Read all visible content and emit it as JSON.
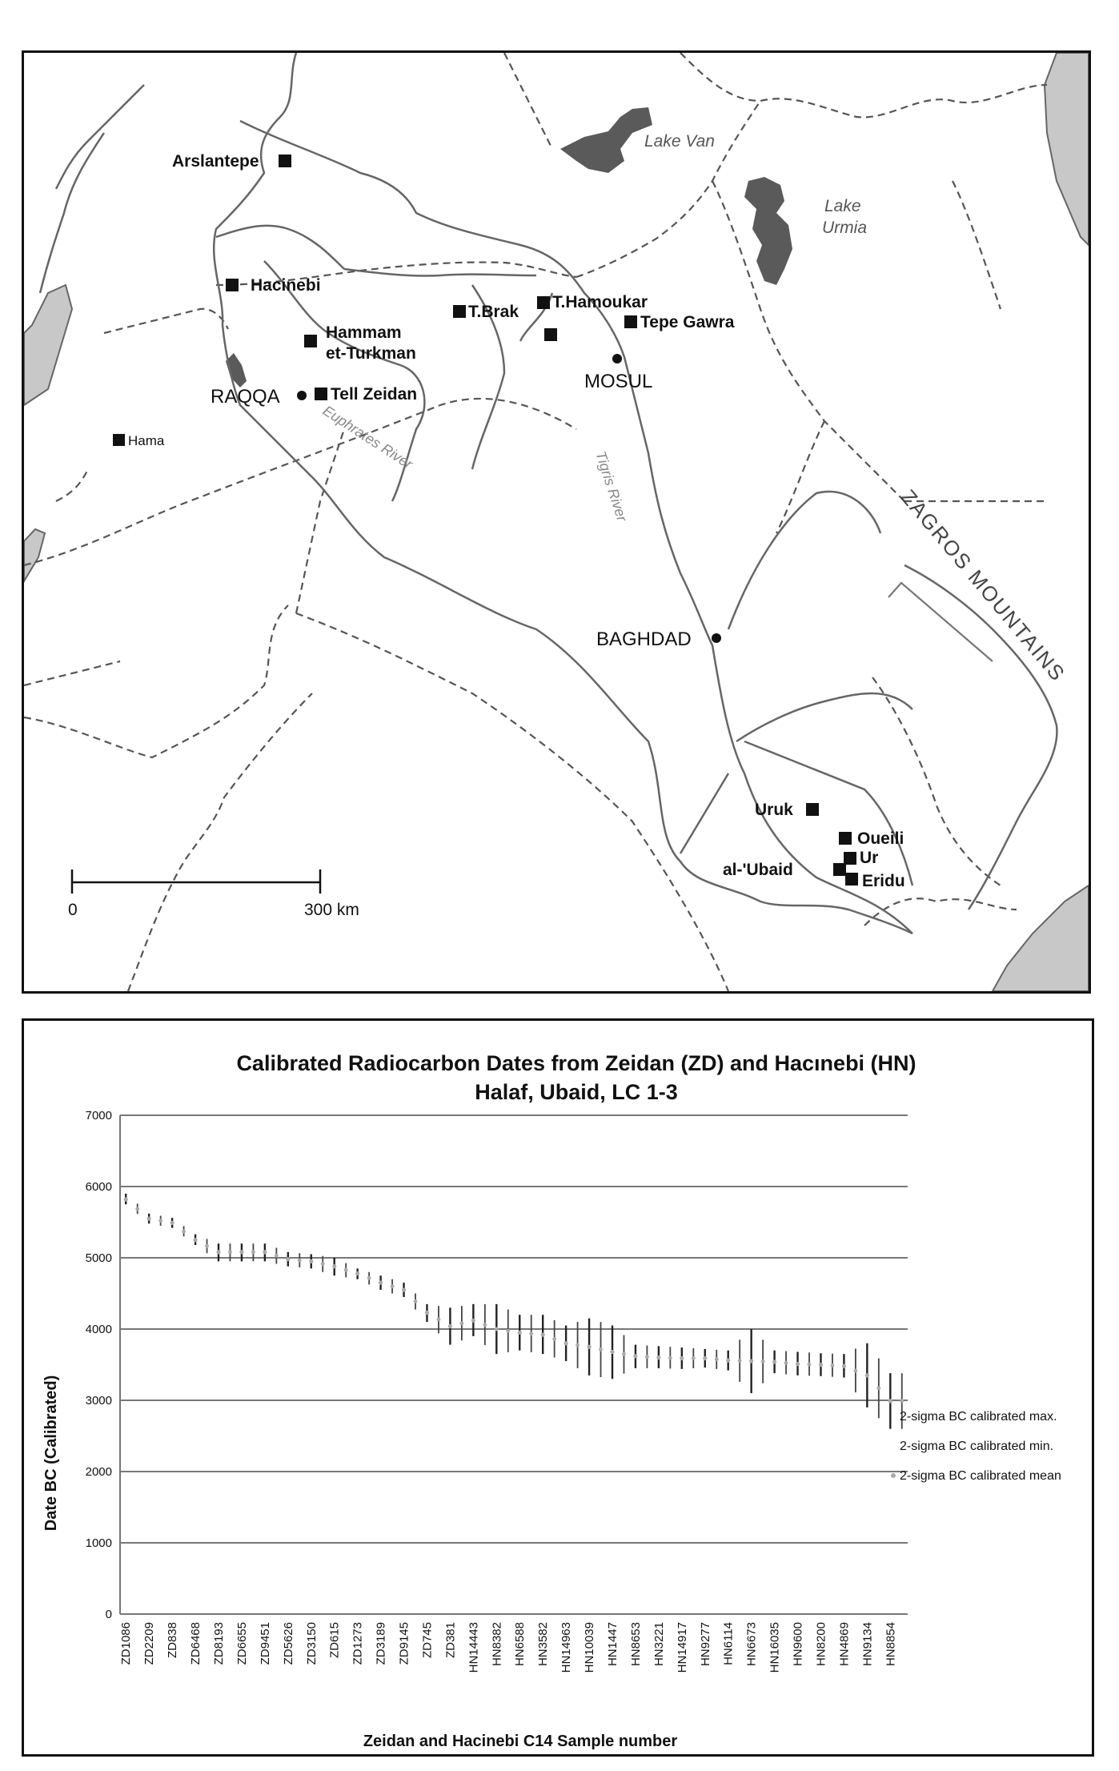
{
  "map": {
    "sites": [
      {
        "name": "Arslantepe"
      },
      {
        "name": "Hacinebi"
      },
      {
        "name": "Hammam"
      },
      {
        "name": "et-Turkman"
      },
      {
        "name": "T.Brak"
      },
      {
        "name": "T.Hamoukar"
      },
      {
        "name": "Tepe Gawra"
      },
      {
        "name": "Tell Zeidan"
      },
      {
        "name": "Hama"
      },
      {
        "name": "Uruk"
      },
      {
        "name": "Oueili"
      },
      {
        "name": "Ur"
      },
      {
        "name": "al-'Ubaid"
      },
      {
        "name": "Eridu"
      }
    ],
    "cities": [
      "RAQQA",
      "MOSUL",
      "BAGHDAD"
    ],
    "lakes": [
      "Lake Van",
      "Lake",
      "Urmia"
    ],
    "rivers": [
      "Euphrates River",
      "Tigris River"
    ],
    "mountains": "ZAGROS MOUNTAINS",
    "scale": {
      "start": "0",
      "end": "300 km"
    }
  },
  "chart_data": {
    "type": "scatter",
    "title": "Calibrated Radiocarbon Dates from Zeidan (ZD) and Hacınebi (HN)",
    "subtitle": "Halaf, Ubaid, LC 1-3",
    "xlabel": "Zeidan and Hacinebi C14 Sample number",
    "ylabel": "Date BC (Calibrated)",
    "ylim": [
      0,
      7000
    ],
    "yticks": [
      "0",
      "1000",
      "2000",
      "3000",
      "4000",
      "5000",
      "6000",
      "7000"
    ],
    "grid": true,
    "legend_position": "right",
    "categories": [
      "ZD1086",
      "ZD2209",
      "ZD838",
      "ZD6468",
      "ZD8193",
      "ZD6655",
      "ZD9451",
      "ZD5626",
      "ZD3150",
      "ZD615",
      "ZD1273",
      "ZD3189",
      "ZD9145",
      "ZD745",
      "ZD381",
      "HN14443",
      "HN8382",
      "HN6588",
      "HN3582",
      "HN14963",
      "HN10039",
      "HN1447",
      "HN8653",
      "HN3221",
      "HN14917",
      "HN9277",
      "HN6114",
      "HN6673",
      "HN16035",
      "HN9600",
      "HN8200",
      "HN4869",
      "HN9134",
      "HN8854"
    ],
    "series": [
      {
        "name": "2-sigma BC calibrated max.",
        "values": [
          5900,
          5620,
          5560,
          5330,
          5200,
          5200,
          5200,
          5080,
          5050,
          5000,
          4850,
          4750,
          4650,
          4350,
          4300,
          4350,
          4350,
          4200,
          4200,
          4050,
          4150,
          4050,
          3780,
          3760,
          3740,
          3720,
          3700,
          4000,
          3700,
          3680,
          3660,
          3650,
          3800,
          3380
        ]
      },
      {
        "name": "2-sigma BC calibrated min.",
        "values": [
          5750,
          5480,
          5420,
          5180,
          4950,
          4950,
          4950,
          4880,
          4850,
          4750,
          4700,
          4550,
          4450,
          4100,
          3780,
          3900,
          3650,
          3700,
          3650,
          3550,
          3350,
          3300,
          3450,
          3450,
          3440,
          3460,
          3420,
          3100,
          3380,
          3350,
          3340,
          3320,
          2900,
          2600
        ]
      },
      {
        "name": "2-sigma BC calibrated mean",
        "values": [
          5820,
          5550,
          5490,
          5250,
          5080,
          5080,
          5080,
          4980,
          4950,
          4880,
          4780,
          4650,
          4550,
          4230,
          4040,
          4120,
          4000,
          3950,
          3920,
          3800,
          3750,
          3680,
          3620,
          3600,
          3590,
          3590,
          3560,
          3550,
          3540,
          3510,
          3500,
          3480,
          3350,
          2990
        ]
      }
    ]
  }
}
